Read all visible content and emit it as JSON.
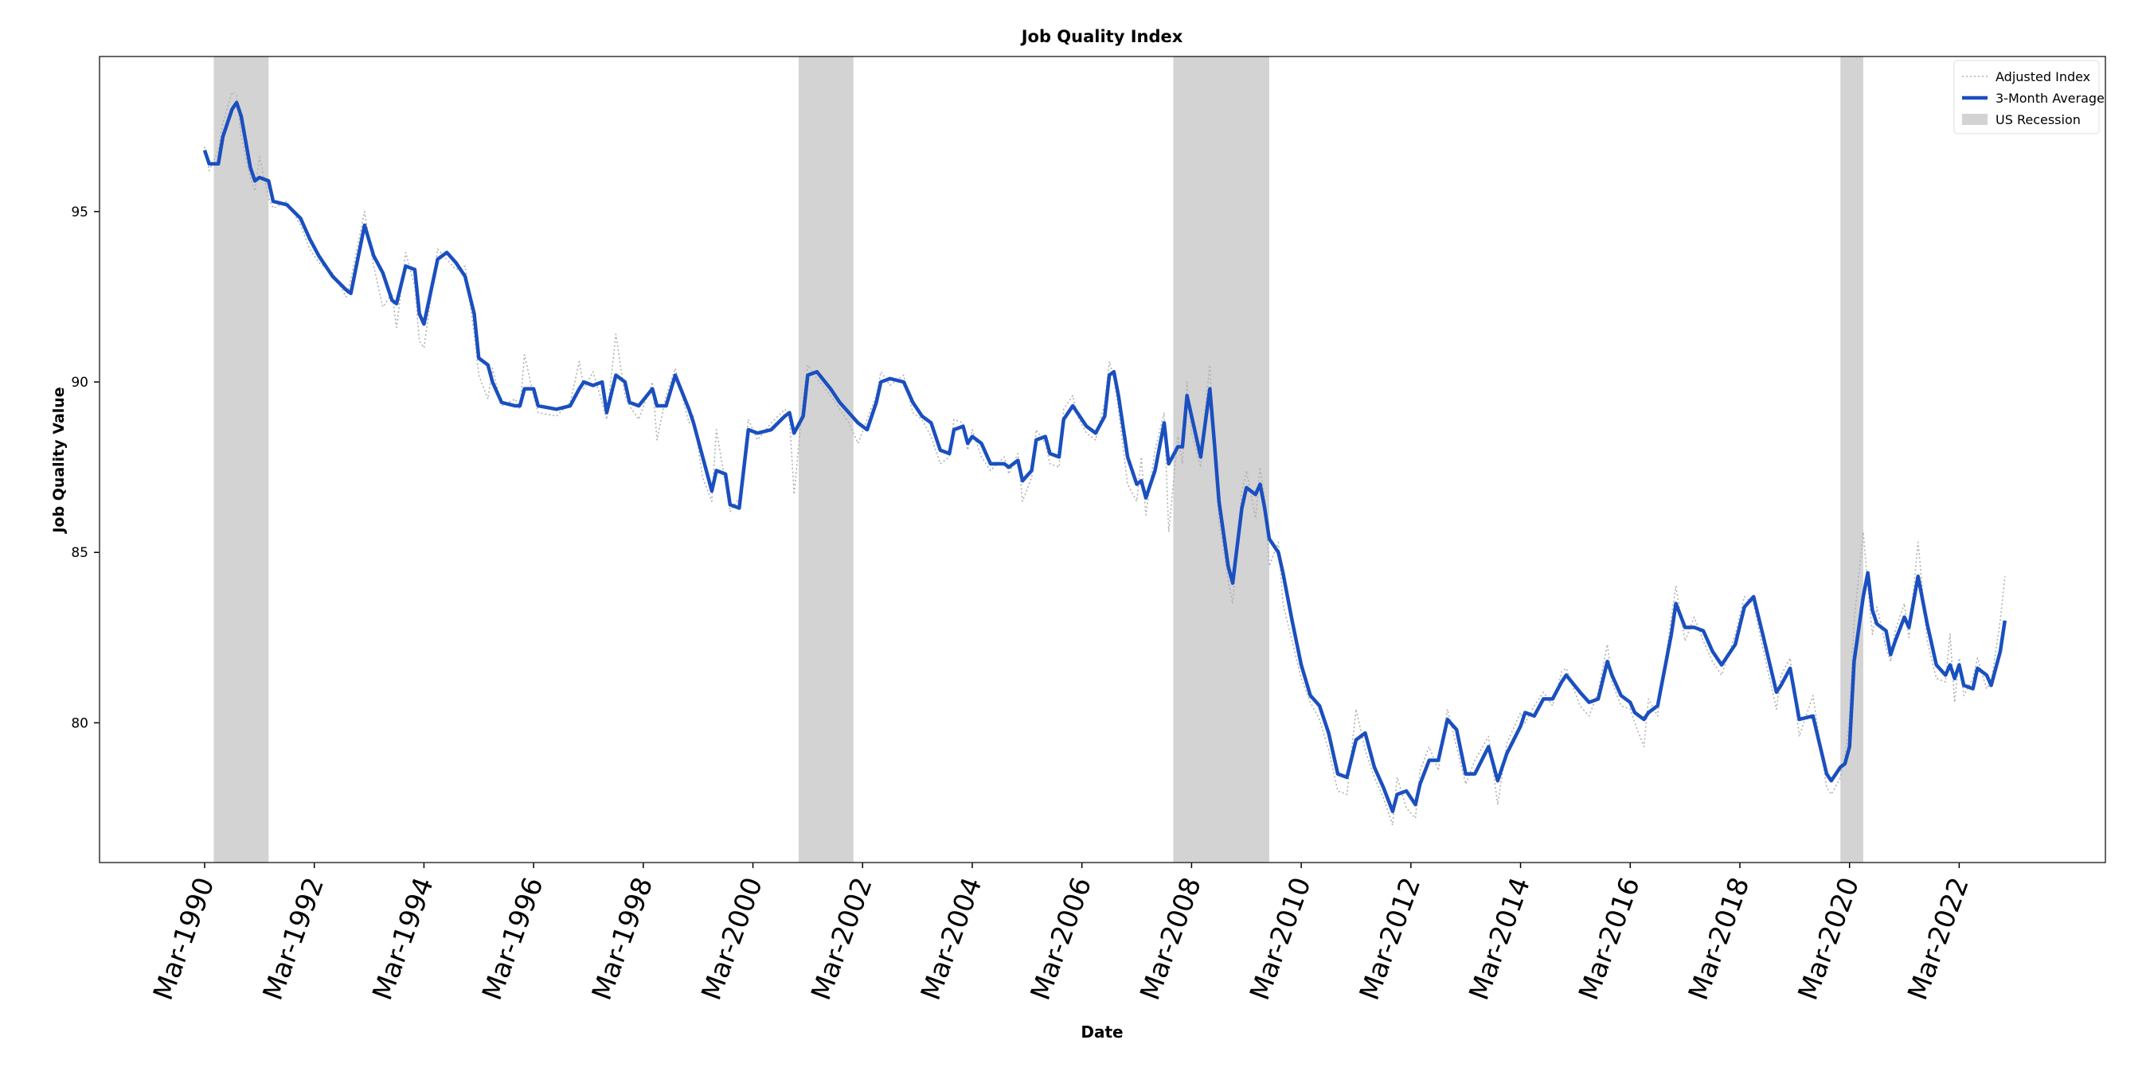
{
  "chart_data": {
    "type": "line",
    "title": "Job Quality Index",
    "xlabel": "Date",
    "ylabel": "Job Quality Value",
    "x": [
      "1990-03",
      "1990-04",
      "1990-06",
      "1990-07",
      "1990-09",
      "1990-10",
      "1990-11",
      "1991-01",
      "1991-02",
      "1991-03",
      "1991-05",
      "1991-06",
      "1991-09",
      "1991-12",
      "1992-02",
      "1992-04",
      "1992-07",
      "1992-10",
      "1992-11",
      "1993-02",
      "1993-04",
      "1993-06",
      "1993-08",
      "1993-09",
      "1993-11",
      "1994-01",
      "1994-02",
      "1994-03",
      "1994-06",
      "1994-08",
      "1994-10",
      "1994-12",
      "1995-02",
      "1995-03",
      "1995-05",
      "1995-06",
      "1995-08",
      "1995-11",
      "1995-12",
      "1996-01",
      "1996-03",
      "1996-04",
      "1996-08",
      "1996-11",
      "1997-01",
      "1997-02",
      "1997-04",
      "1997-06",
      "1997-07",
      "1997-09",
      "1997-11",
      "1997-12",
      "1998-02",
      "1998-05",
      "1998-06",
      "1998-08",
      "1998-10",
      "1999-01",
      "1999-02",
      "1999-04",
      "1999-06",
      "1999-07",
      "1999-09",
      "1999-10",
      "1999-12",
      "2000-02",
      "2000-04",
      "2000-07",
      "2000-10",
      "2000-11",
      "2000-12",
      "2001-02",
      "2001-03",
      "2001-05",
      "2001-08",
      "2001-10",
      "2001-12",
      "2002-02",
      "2002-04",
      "2002-06",
      "2002-07",
      "2002-09",
      "2002-12",
      "2003-02",
      "2003-04",
      "2003-06",
      "2003-08",
      "2003-10",
      "2003-11",
      "2004-01",
      "2004-02",
      "2004-03",
      "2004-05",
      "2004-07",
      "2004-10",
      "2004-11",
      "2005-01",
      "2005-02",
      "2005-04",
      "2005-05",
      "2005-07",
      "2005-08",
      "2005-10",
      "2005-11",
      "2006-01",
      "2006-02",
      "2006-04",
      "2006-06",
      "2006-08",
      "2006-09",
      "2006-10",
      "2006-11",
      "2007-01",
      "2007-03",
      "2007-04",
      "2007-05",
      "2007-07",
      "2007-09",
      "2007-10",
      "2007-12",
      "2008-01",
      "2008-02",
      "2008-03",
      "2008-05",
      "2008-06",
      "2008-07",
      "2008-08",
      "2008-09",
      "2008-11",
      "2008-12",
      "2009-02",
      "2009-03",
      "2009-05",
      "2009-06",
      "2009-07",
      "2009-08",
      "2009-10",
      "2009-11",
      "2010-01",
      "2010-03",
      "2010-05",
      "2010-07",
      "2010-09",
      "2010-11",
      "2011-01",
      "2011-03",
      "2011-05",
      "2011-07",
      "2011-09",
      "2011-11",
      "2011-12",
      "2012-02",
      "2012-04",
      "2012-05",
      "2012-07",
      "2012-09",
      "2012-11",
      "2013-01",
      "2013-03",
      "2013-05",
      "2013-08",
      "2013-10",
      "2013-12",
      "2014-03",
      "2014-04",
      "2014-06",
      "2014-08",
      "2014-10",
      "2014-12",
      "2015-01",
      "2015-04",
      "2015-06",
      "2015-08",
      "2015-10",
      "2015-11",
      "2016-01",
      "2016-03",
      "2016-04",
      "2016-06",
      "2016-07",
      "2016-09",
      "2016-12",
      "2017-01",
      "2017-03",
      "2017-05",
      "2017-07",
      "2017-09",
      "2017-11",
      "2018-02",
      "2018-04",
      "2018-06",
      "2018-08",
      "2018-11",
      "2018-12",
      "2019-02",
      "2019-04",
      "2019-07",
      "2019-10",
      "2019-11",
      "2020-01",
      "2020-02",
      "2020-03",
      "2020-04",
      "2020-06",
      "2020-07",
      "2020-08",
      "2020-09",
      "2020-11",
      "2020-12",
      "2021-01",
      "2021-03",
      "2021-04",
      "2021-06",
      "2021-08",
      "2021-10",
      "2021-12",
      "2022-01",
      "2022-02",
      "2022-03",
      "2022-04",
      "2022-06",
      "2022-07",
      "2022-09",
      "2022-10",
      "2022-12",
      "2023-01"
    ],
    "series": [
      {
        "name": "Adjusted Index",
        "color": "#b0b0b0",
        "style": "dotted",
        "values": [
          96.9,
          96.2,
          96.8,
          97.6,
          98.5,
          98.4,
          97.2,
          96.0,
          95.6,
          96.6,
          95.4,
          95.1,
          95.3,
          94.6,
          93.9,
          93.5,
          93.2,
          92.5,
          93.0,
          95.0,
          93.4,
          92.2,
          92.6,
          91.6,
          93.8,
          92.8,
          91.2,
          91.0,
          93.9,
          93.6,
          93.3,
          93.4,
          91.4,
          90.2,
          89.5,
          90.4,
          89.3,
          89.5,
          89.2,
          90.8,
          89.6,
          89.1,
          89.0,
          89.4,
          90.6,
          89.8,
          90.3,
          89.4,
          88.9,
          91.4,
          89.6,
          89.3,
          88.9,
          90.0,
          88.3,
          89.6,
          90.4,
          88.8,
          89.0,
          87.2,
          86.5,
          88.6,
          87.0,
          86.2,
          86.6,
          88.9,
          88.3,
          88.8,
          89.2,
          89.0,
          86.7,
          89.5,
          90.5,
          90.1,
          89.6,
          89.2,
          88.8,
          88.2,
          88.9,
          89.6,
          90.3,
          89.9,
          90.2,
          89.1,
          88.9,
          88.4,
          87.6,
          87.8,
          88.9,
          88.8,
          88.0,
          88.6,
          87.8,
          87.4,
          87.8,
          87.3,
          87.9,
          86.5,
          87.2,
          88.6,
          88.2,
          87.6,
          87.5,
          89.2,
          89.6,
          89.0,
          88.5,
          88.3,
          89.4,
          90.6,
          90.1,
          89.2,
          87.0,
          86.5,
          87.8,
          86.1,
          88.0,
          89.1,
          85.6,
          88.4,
          87.6,
          90.0,
          88.5,
          87.5,
          89.3,
          90.5,
          87.7,
          85.9,
          84.2,
          83.5,
          86.8,
          87.4,
          86.0,
          87.5,
          86.6,
          84.6,
          85.3,
          83.5,
          82.4,
          81.3,
          80.6,
          80.1,
          79.2,
          78.0,
          77.9,
          80.4,
          79.2,
          78.4,
          77.8,
          77.0,
          78.4,
          77.5,
          77.2,
          78.6,
          79.3,
          78.6,
          80.4,
          79.3,
          78.2,
          78.9,
          79.6,
          77.6,
          79.4,
          80.3,
          80.0,
          80.5,
          80.9,
          80.5,
          81.5,
          81.6,
          80.5,
          80.2,
          80.9,
          82.3,
          81.2,
          80.5,
          80.4,
          80.0,
          79.3,
          80.7,
          80.2,
          83.1,
          84.0,
          82.4,
          83.1,
          82.4,
          81.8,
          81.4,
          82.6,
          83.7,
          83.5,
          82.2,
          80.4,
          81.4,
          81.9,
          79.6,
          80.8,
          78.1,
          77.9,
          78.4,
          79.0,
          80.2,
          83.0,
          85.6,
          84.0,
          82.6,
          83.4,
          82.2,
          81.8,
          82.7,
          83.5,
          82.5,
          85.3,
          82.4,
          81.3,
          81.2,
          82.6,
          80.6,
          81.9,
          80.8,
          81.3,
          81.9,
          81.0,
          81.2,
          83.0,
          84.3
        ]
      },
      {
        "name": "3-Month Average",
        "color": "#1a4fbf",
        "style": "solid",
        "values": [
          96.8,
          96.4,
          96.4,
          97.2,
          98.0,
          98.2,
          97.8,
          96.3,
          95.9,
          96.0,
          95.9,
          95.3,
          95.2,
          94.8,
          94.2,
          93.7,
          93.1,
          92.7,
          92.6,
          94.6,
          93.7,
          93.2,
          92.4,
          92.3,
          93.4,
          93.3,
          92.0,
          91.7,
          93.6,
          93.8,
          93.5,
          93.1,
          92.0,
          90.7,
          90.5,
          90.0,
          89.4,
          89.3,
          89.3,
          89.8,
          89.8,
          89.3,
          89.2,
          89.3,
          89.8,
          90.0,
          89.9,
          90.0,
          89.1,
          90.2,
          90.0,
          89.4,
          89.3,
          89.8,
          89.3,
          89.3,
          90.2,
          89.2,
          88.8,
          87.8,
          86.8,
          87.4,
          87.3,
          86.4,
          86.3,
          88.6,
          88.5,
          88.6,
          89.0,
          89.1,
          88.5,
          89.0,
          90.2,
          90.3,
          89.8,
          89.4,
          89.1,
          88.8,
          88.6,
          89.4,
          90.0,
          90.1,
          90.0,
          89.4,
          89.0,
          88.8,
          88.0,
          87.9,
          88.6,
          88.7,
          88.2,
          88.4,
          88.2,
          87.6,
          87.6,
          87.5,
          87.7,
          87.1,
          87.4,
          88.3,
          88.4,
          87.9,
          87.8,
          88.9,
          89.3,
          89.1,
          88.7,
          88.5,
          89.0,
          90.2,
          90.3,
          89.6,
          87.8,
          87.0,
          87.1,
          86.6,
          87.4,
          88.8,
          87.6,
          88.1,
          88.1,
          89.6,
          89.0,
          87.8,
          88.8,
          89.8,
          88.2,
          86.5,
          84.6,
          84.1,
          86.3,
          86.9,
          86.7,
          87.0,
          86.3,
          85.4,
          85.0,
          84.4,
          83.0,
          81.7,
          80.8,
          80.5,
          79.7,
          78.5,
          78.4,
          79.5,
          79.7,
          78.7,
          78.1,
          77.4,
          77.9,
          78.0,
          77.6,
          78.2,
          78.9,
          78.9,
          80.1,
          79.8,
          78.5,
          78.5,
          79.3,
          78.3,
          79.1,
          79.9,
          80.3,
          80.2,
          80.7,
          80.7,
          81.2,
          81.4,
          80.9,
          80.6,
          80.7,
          81.8,
          81.4,
          80.8,
          80.6,
          80.3,
          80.1,
          80.3,
          80.5,
          82.6,
          83.5,
          82.8,
          82.8,
          82.7,
          82.1,
          81.7,
          82.3,
          83.4,
          83.7,
          82.6,
          80.9,
          81.1,
          81.6,
          80.1,
          80.2,
          78.5,
          78.3,
          78.7,
          78.8,
          79.3,
          81.8,
          83.7,
          84.4,
          83.3,
          82.9,
          82.7,
          82.0,
          82.4,
          83.1,
          82.8,
          84.3,
          82.9,
          81.7,
          81.4,
          81.7,
          81.3,
          81.7,
          81.1,
          81.0,
          81.6,
          81.4,
          81.1,
          82.1,
          83.0
        ]
      }
    ],
    "recessions": {
      "name": "US Recession",
      "color": "#d3d3d3",
      "spans": [
        [
          "1990-05",
          "1991-05"
        ],
        [
          "2001-01",
          "2002-01"
        ],
        [
          "2007-11",
          "2009-08"
        ],
        [
          "2020-01",
          "2020-06"
        ]
      ]
    },
    "xlim": [
      "1988-04",
      "2024-11"
    ],
    "xticks": [
      {
        "value": "1990-03",
        "label": "Mar-1990"
      },
      {
        "value": "1992-03",
        "label": "Mar-1992"
      },
      {
        "value": "1994-03",
        "label": "Mar-1994"
      },
      {
        "value": "1996-03",
        "label": "Mar-1996"
      },
      {
        "value": "1998-03",
        "label": "Mar-1998"
      },
      {
        "value": "2000-03",
        "label": "Mar-2000"
      },
      {
        "value": "2002-03",
        "label": "Mar-2002"
      },
      {
        "value": "2004-03",
        "label": "Mar-2004"
      },
      {
        "value": "2006-03",
        "label": "Mar-2006"
      },
      {
        "value": "2008-03",
        "label": "Mar-2008"
      },
      {
        "value": "2010-03",
        "label": "Mar-2010"
      },
      {
        "value": "2012-03",
        "label": "Mar-2012"
      },
      {
        "value": "2014-03",
        "label": "Mar-2014"
      },
      {
        "value": "2016-03",
        "label": "Mar-2016"
      },
      {
        "value": "2018-03",
        "label": "Mar-2018"
      },
      {
        "value": "2020-03",
        "label": "Mar-2020"
      },
      {
        "value": "2022-03",
        "label": "Mar-2022"
      }
    ],
    "ylim": [
      75.9,
      99.55
    ],
    "yticks": [
      80,
      85,
      90,
      95
    ],
    "grid": false,
    "legend": "upper right"
  }
}
